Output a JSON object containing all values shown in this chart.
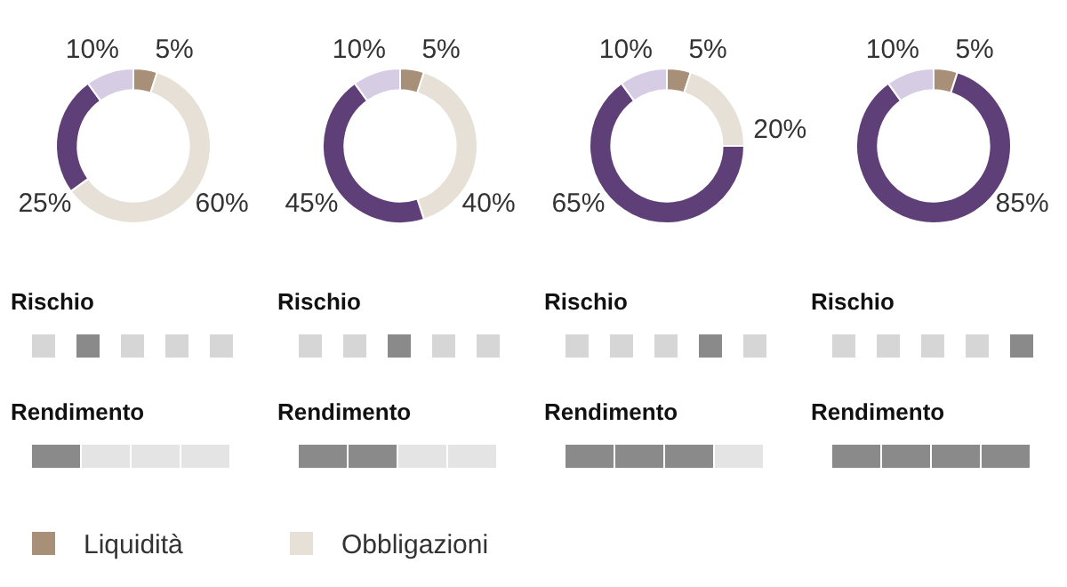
{
  "chart_data": [
    {
      "type": "donut",
      "categories": [
        "Liquidità",
        "Obbligazioni",
        null,
        null
      ],
      "values": [
        5,
        60,
        25,
        10
      ],
      "colors": [
        "#a89078",
        "#e6e0d6",
        "#5e3f78",
        "#d6cce4"
      ],
      "value_labels": [
        "5%",
        "60%",
        "25%",
        "10%"
      ],
      "legend": "bottom",
      "annotations": [
        "Rischio",
        "Rendimento"
      ]
    },
    {
      "type": "donut",
      "categories": [
        null,
        null,
        null,
        null
      ],
      "values": [
        5,
        40,
        45,
        10
      ],
      "colors": [
        "#a89078",
        "#e6e0d6",
        "#5e3f78",
        "#d6cce4"
      ],
      "value_labels": [
        "5%",
        "40%",
        "45%",
        "10%"
      ],
      "annotations": [
        "Rischio",
        "Rendimento"
      ]
    },
    {
      "type": "donut",
      "categories": [
        null,
        null,
        null,
        null
      ],
      "values": [
        5,
        20,
        65,
        10
      ],
      "colors": [
        "#a89078",
        "#e6e0d6",
        "#5e3f78",
        "#d6cce4"
      ],
      "value_labels": [
        "5%",
        "20%",
        "65%",
        "10%"
      ],
      "annotations": [
        "Rischio",
        "Rendimento"
      ]
    },
    {
      "type": "donut",
      "categories": [
        null,
        null,
        null,
        null
      ],
      "values": [
        5,
        0,
        85,
        10
      ],
      "colors": [
        "#a89078",
        "#e6e0d6",
        "#5e3f78",
        "#d6cce4"
      ],
      "value_labels": [
        "5%",
        null,
        "85%",
        "10%"
      ],
      "annotations": [
        "Rischio",
        "Rendimento"
      ]
    }
  ]
}
